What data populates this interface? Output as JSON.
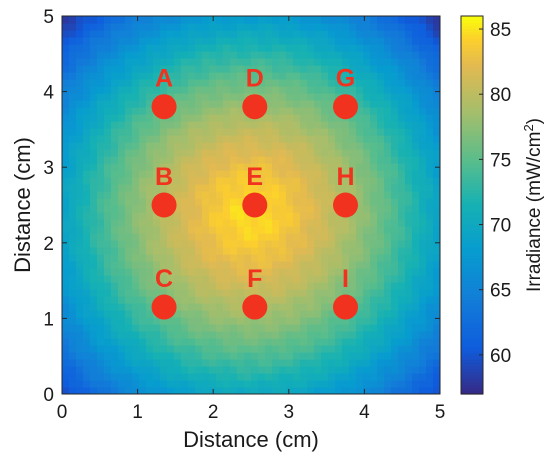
{
  "chart_data": {
    "type": "heatmap",
    "title": "",
    "xlabel": "Distance (cm)",
    "ylabel": "Distance (cm)",
    "xlim": [
      0,
      5
    ],
    "ylim": [
      0,
      5
    ],
    "xticks": [
      "0",
      "1",
      "2",
      "3",
      "4",
      "5"
    ],
    "yticks": [
      "0",
      "1",
      "2",
      "3",
      "4",
      "5"
    ],
    "colorbar": {
      "label_main": "Irradiance (mW/cm",
      "label_sup": "2",
      "label_close": ")",
      "range": [
        57,
        86
      ],
      "ticks": [
        "60",
        "65",
        "70",
        "75",
        "80",
        "85"
      ],
      "colormap": "parula"
    },
    "field": {
      "center": [
        2.5,
        2.4
      ],
      "peak_value": 85,
      "corner_value": 58
    },
    "points": [
      {
        "label": "A",
        "x": 1.35,
        "y": 3.8
      },
      {
        "label": "D",
        "x": 2.55,
        "y": 3.8
      },
      {
        "label": "G",
        "x": 3.75,
        "y": 3.8
      },
      {
        "label": "B",
        "x": 1.35,
        "y": 2.5
      },
      {
        "label": "E",
        "x": 2.55,
        "y": 2.5
      },
      {
        "label": "H",
        "x": 3.75,
        "y": 2.5
      },
      {
        "label": "C",
        "x": 1.35,
        "y": 1.15
      },
      {
        "label": "F",
        "x": 2.55,
        "y": 1.15
      },
      {
        "label": "I",
        "x": 3.75,
        "y": 1.15
      }
    ],
    "point_color": "#f0321e"
  }
}
